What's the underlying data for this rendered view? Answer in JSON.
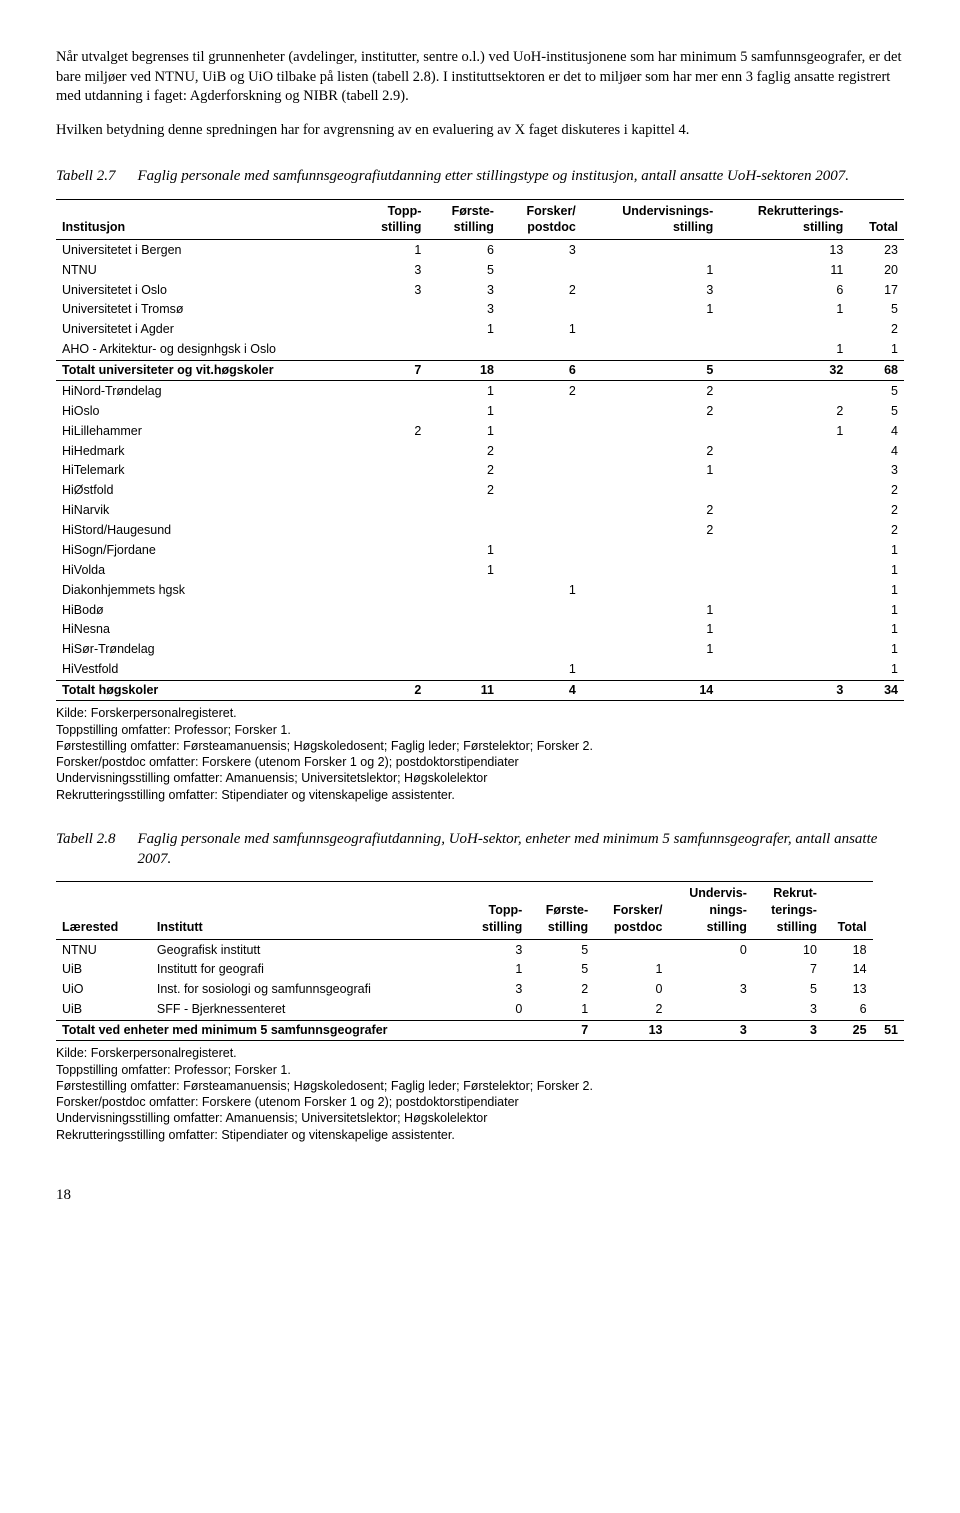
{
  "para1": "Når utvalget begrenses til grunnenheter (avdelinger, institutter, sentre o.l.) ved UoH-institusjonene som har minimum 5 samfunnsgeografer, er det bare miljøer ved NTNU, UiB og UiO tilbake på listen (tabell 2.8). I instituttsektoren er det to miljøer som har mer enn 3 faglig ansatte registrert med utdanning i faget: Agderforskning og NIBR (tabell 2.9).",
  "para2": "Hvilken betydning denne spredningen har for avgrensning av en evaluering av X faget diskuteres i kapittel 4.",
  "tabell27": {
    "num": "Tabell 2.7",
    "title": "Faglig personale med samfunnsgeografiutdanning etter stillingstype og institusjon, antall ansatte UoH-sektoren 2007.",
    "headers": [
      "Institusjon",
      "Topp-\nstilling",
      "Første-\nstilling",
      "Forsker/\npostdoc",
      "Undervisnings-\nstilling",
      "Rekrutterings-\nstilling",
      "Total"
    ],
    "rows": [
      {
        "cells": [
          "Universitetet i Bergen",
          "1",
          "6",
          "3",
          "",
          "13",
          "23"
        ]
      },
      {
        "cells": [
          "NTNU",
          "3",
          "5",
          "",
          "1",
          "11",
          "20"
        ]
      },
      {
        "cells": [
          "Universitetet i Oslo",
          "3",
          "3",
          "2",
          "3",
          "6",
          "17"
        ]
      },
      {
        "cells": [
          "Universitetet i Tromsø",
          "",
          "3",
          "",
          "1",
          "1",
          "5"
        ]
      },
      {
        "cells": [
          "Universitetet i Agder",
          "",
          "1",
          "1",
          "",
          "",
          "2"
        ]
      },
      {
        "cells": [
          "AHO - Arkitektur- og designhgsk i Oslo",
          "",
          "",
          "",
          "",
          "1",
          "1"
        ]
      },
      {
        "cells": [
          "Totalt universiteter og vit.høgskoler",
          "7",
          "18",
          "6",
          "5",
          "32",
          "68"
        ],
        "bold": true,
        "sep": true
      },
      {
        "cells": [
          "HiNord-Trøndelag",
          "",
          "1",
          "2",
          "2",
          "",
          "5"
        ]
      },
      {
        "cells": [
          "HiOslo",
          "",
          "1",
          "",
          "2",
          "2",
          "5"
        ]
      },
      {
        "cells": [
          "HiLillehammer",
          "2",
          "1",
          "",
          "",
          "1",
          "4"
        ]
      },
      {
        "cells": [
          "HiHedmark",
          "",
          "2",
          "",
          "2",
          "",
          "4"
        ]
      },
      {
        "cells": [
          "HiTelemark",
          "",
          "2",
          "",
          "1",
          "",
          "3"
        ]
      },
      {
        "cells": [
          "HiØstfold",
          "",
          "2",
          "",
          "",
          "",
          "2"
        ]
      },
      {
        "cells": [
          "HiNarvik",
          "",
          "",
          "",
          "2",
          "",
          "2"
        ]
      },
      {
        "cells": [
          "HiStord/Haugesund",
          "",
          "",
          "",
          "2",
          "",
          "2"
        ]
      },
      {
        "cells": [
          "HiSogn/Fjordane",
          "",
          "1",
          "",
          "",
          "",
          "1"
        ]
      },
      {
        "cells": [
          "HiVolda",
          "",
          "1",
          "",
          "",
          "",
          "1"
        ]
      },
      {
        "cells": [
          "Diakonhjemmets hgsk",
          "",
          "",
          "1",
          "",
          "",
          "1"
        ]
      },
      {
        "cells": [
          "HiBodø",
          "",
          "",
          "",
          "1",
          "",
          "1"
        ]
      },
      {
        "cells": [
          "HiNesna",
          "",
          "",
          "",
          "1",
          "",
          "1"
        ]
      },
      {
        "cells": [
          "HiSør-Trøndelag",
          "",
          "",
          "",
          "1",
          "",
          "1"
        ]
      },
      {
        "cells": [
          "HiVestfold",
          "",
          "",
          "1",
          "",
          "",
          "1"
        ]
      },
      {
        "cells": [
          "Totalt høgskoler",
          "2",
          "11",
          "4",
          "14",
          "3",
          "34"
        ],
        "bold": true,
        "sep": true
      }
    ]
  },
  "tabell28": {
    "num": "Tabell 2.8",
    "title": "Faglig personale med samfunnsgeografiutdanning, UoH-sektor, enheter med minimum 5 samfunnsgeografer, antall ansatte 2007.",
    "headers": [
      "Lærested",
      "Institutt",
      "Topp-\nstilling",
      "Første-\nstilling",
      "Forsker/\npostdoc",
      "Undervis-\nnings-\nstilling",
      "Rekrut-\nterings-\nstilling",
      "Total"
    ],
    "rows": [
      {
        "cells": [
          "NTNU",
          "Geografisk institutt",
          "3",
          "5",
          "",
          "0",
          "10",
          "18"
        ]
      },
      {
        "cells": [
          "UiB",
          "Institutt for geografi",
          "1",
          "5",
          "1",
          "",
          "7",
          "14"
        ]
      },
      {
        "cells": [
          "UiO",
          "Inst. for sosiologi og samfunnsgeografi",
          "3",
          "2",
          "0",
          "3",
          "5",
          "13"
        ]
      },
      {
        "cells": [
          "UiB",
          "SFF - Bjerknessenteret",
          "0",
          "1",
          "2",
          "",
          "3",
          "6"
        ]
      },
      {
        "cells": [
          "Totalt ved enheter med minimum 5 samfunnsgeografer",
          "",
          "7",
          "13",
          "3",
          "3",
          "25",
          "51"
        ],
        "bold": true,
        "sep": true,
        "merge": true
      }
    ]
  },
  "notes": [
    "Kilde: Forskerpersonalregisteret.",
    "Toppstilling omfatter: Professor; Forsker 1.",
    "Førstestilling omfatter: Førsteamanuensis; Høgskoledosent; Faglig leder; Førstelektor; Forsker 2.",
    "Forsker/postdoc omfatter: Forskere (utenom Forsker 1 og 2); postdoktorstipendiater",
    "Undervisningsstilling omfatter: Amanuensis; Universitetslektor; Høgskolelektor",
    "Rekrutteringsstilling omfatter: Stipendiater og vitenskapelige assistenter."
  ],
  "pageNum": "18"
}
